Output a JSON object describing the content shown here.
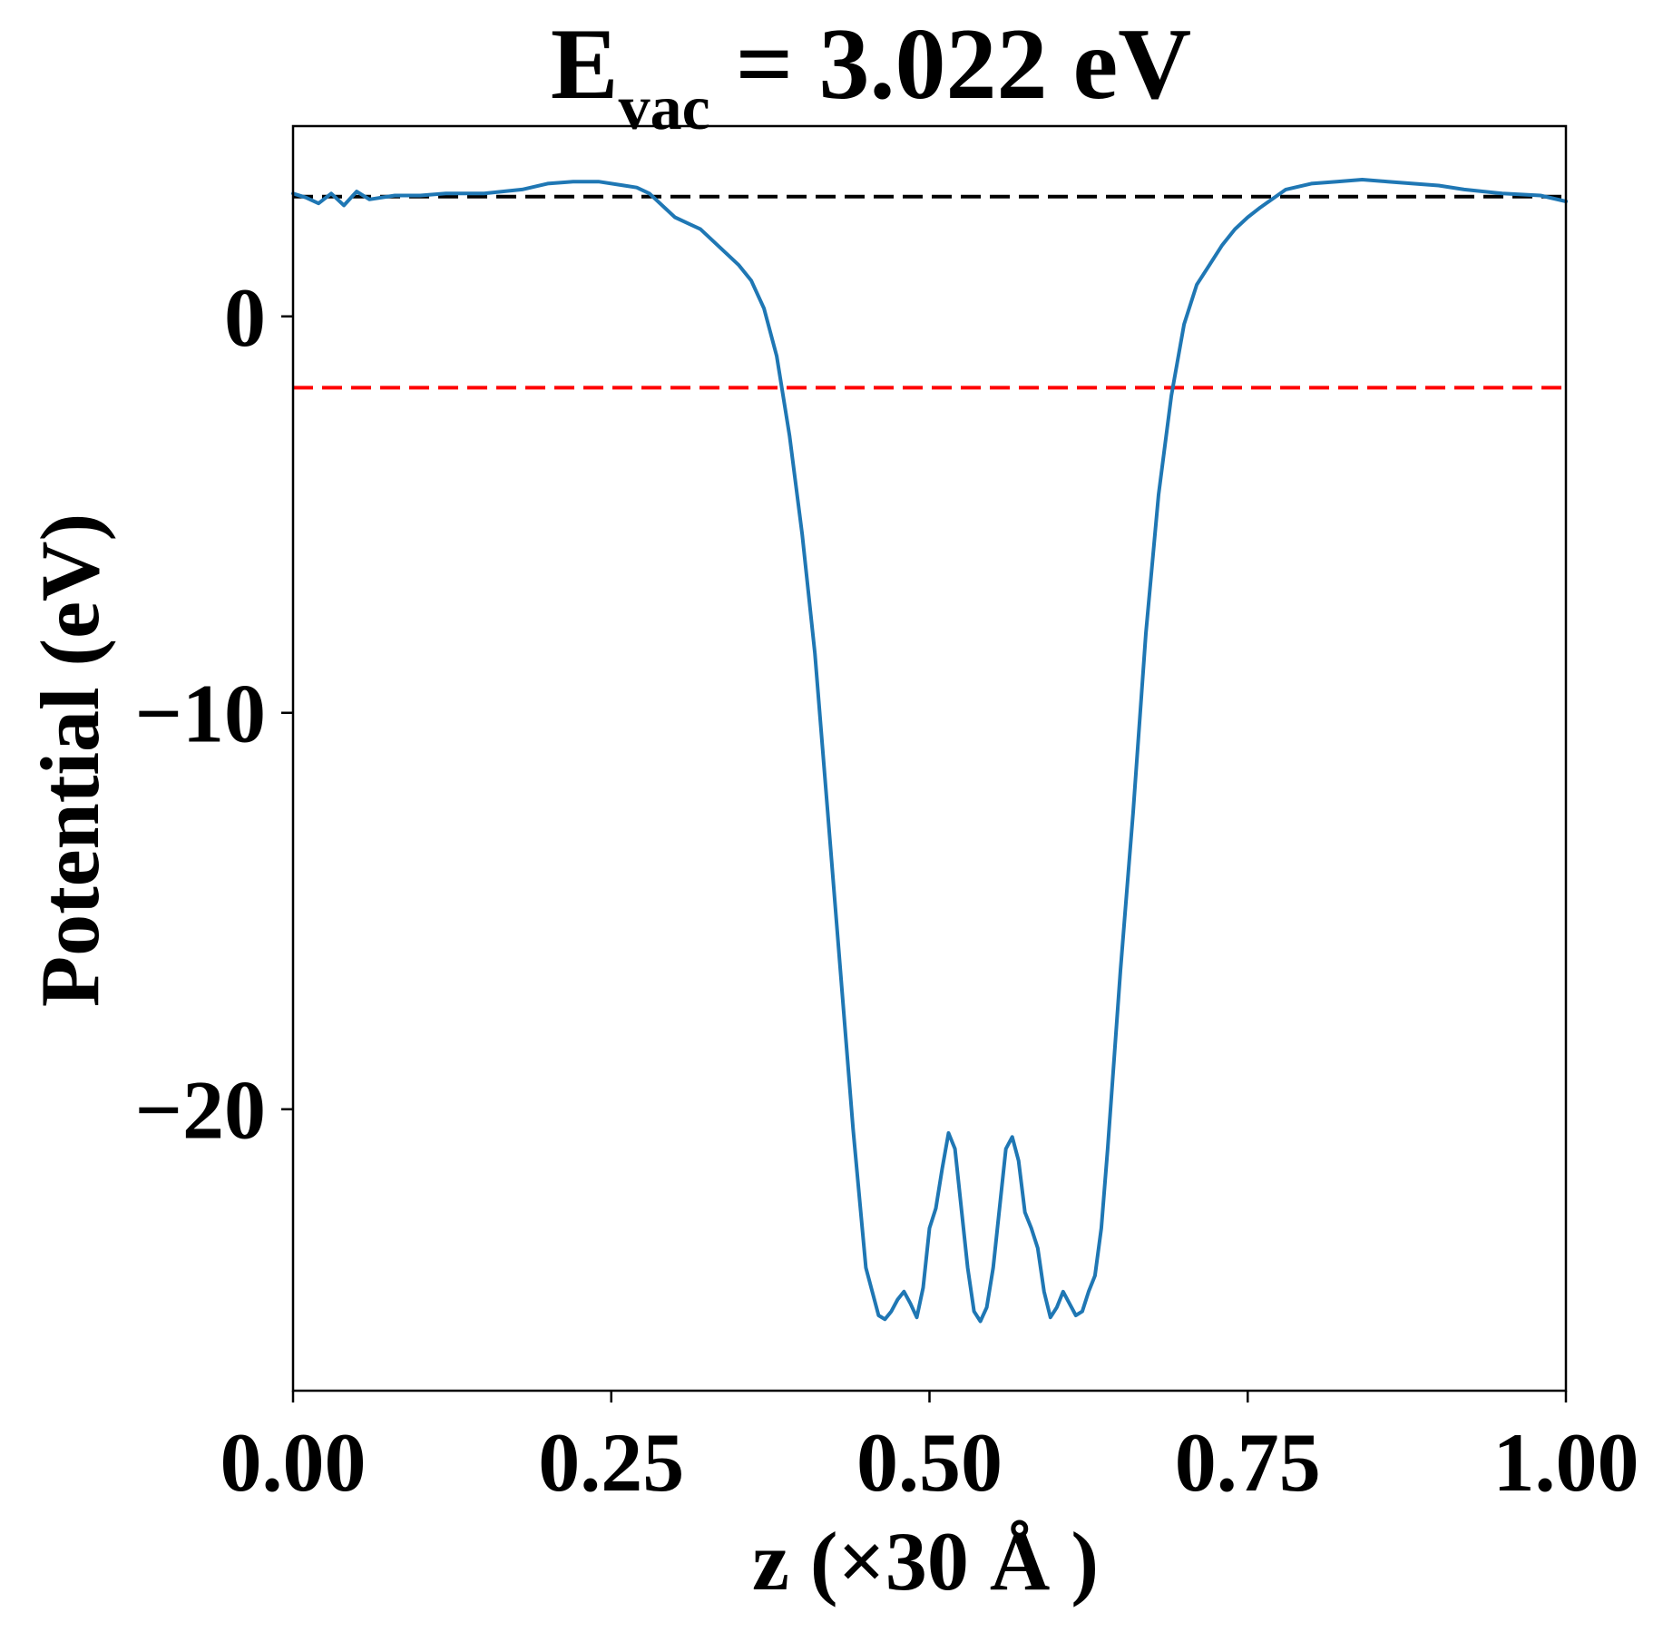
{
  "chart_data": {
    "type": "line",
    "title": {
      "main": "E",
      "subscript": "vac",
      "rest": " = 3.022 eV"
    },
    "xlabel": "z (×30 Å )",
    "ylabel": "Potential (eV)",
    "xlim": [
      0.0,
      1.0
    ],
    "ylim": [
      -27.1,
      4.8
    ],
    "xticks": [
      0.0,
      0.25,
      0.5,
      0.75,
      1.0
    ],
    "xtick_labels": [
      "0.00",
      "0.25",
      "0.50",
      "0.75",
      "1.00"
    ],
    "yticks": [
      0,
      -10,
      -20
    ],
    "ytick_labels": [
      "0",
      "−10",
      "−20"
    ],
    "grid": false,
    "hlines": [
      {
        "name": "vacuum-level",
        "y": 3.022,
        "color": "#000000",
        "style": "dashed"
      },
      {
        "name": "fermi-level",
        "y": -1.8,
        "color": "#ff0000",
        "style": "dashed"
      }
    ],
    "series": [
      {
        "color": "#1f77b4",
        "x": [
          0.0,
          0.01,
          0.02,
          0.03,
          0.04,
          0.05,
          0.06,
          0.08,
          0.1,
          0.12,
          0.15,
          0.18,
          0.2,
          0.22,
          0.24,
          0.26,
          0.27,
          0.28,
          0.3,
          0.32,
          0.34,
          0.35,
          0.36,
          0.37,
          0.38,
          0.39,
          0.4,
          0.41,
          0.42,
          0.43,
          0.44,
          0.45,
          0.46,
          0.465,
          0.47,
          0.475,
          0.48,
          0.485,
          0.49,
          0.495,
          0.5,
          0.505,
          0.51,
          0.515,
          0.52,
          0.525,
          0.53,
          0.535,
          0.54,
          0.545,
          0.55,
          0.555,
          0.56,
          0.565,
          0.57,
          0.575,
          0.58,
          0.585,
          0.59,
          0.595,
          0.6,
          0.605,
          0.61,
          0.615,
          0.62,
          0.625,
          0.63,
          0.635,
          0.64,
          0.65,
          0.66,
          0.67,
          0.68,
          0.69,
          0.7,
          0.71,
          0.72,
          0.73,
          0.74,
          0.75,
          0.76,
          0.78,
          0.8,
          0.82,
          0.84,
          0.86,
          0.88,
          0.9,
          0.92,
          0.95,
          0.98,
          1.0
        ],
        "y": [
          3.1,
          3.0,
          2.85,
          3.1,
          2.8,
          3.15,
          2.95,
          3.05,
          3.05,
          3.1,
          3.1,
          3.2,
          3.35,
          3.4,
          3.4,
          3.3,
          3.25,
          3.1,
          2.5,
          2.2,
          1.6,
          1.3,
          0.9,
          0.2,
          -1.0,
          -3.0,
          -5.5,
          -8.5,
          -12.5,
          -16.5,
          -20.5,
          -24.0,
          -25.2,
          -25.3,
          -25.1,
          -24.8,
          -24.6,
          -24.9,
          -25.25,
          -24.5,
          -23.0,
          -22.5,
          -21.5,
          -20.6,
          -21.0,
          -22.5,
          -24.0,
          -25.1,
          -25.35,
          -25.0,
          -24.0,
          -22.5,
          -21.0,
          -20.7,
          -21.3,
          -22.6,
          -23.0,
          -23.5,
          -24.6,
          -25.25,
          -25.0,
          -24.6,
          -24.9,
          -25.2,
          -25.1,
          -24.6,
          -24.2,
          -23.0,
          -21.0,
          -16.5,
          -12.5,
          -8.0,
          -4.5,
          -2.0,
          -0.2,
          0.8,
          1.3,
          1.8,
          2.2,
          2.5,
          2.75,
          3.2,
          3.35,
          3.4,
          3.45,
          3.4,
          3.35,
          3.3,
          3.2,
          3.1,
          3.05,
          2.9
        ]
      }
    ]
  }
}
